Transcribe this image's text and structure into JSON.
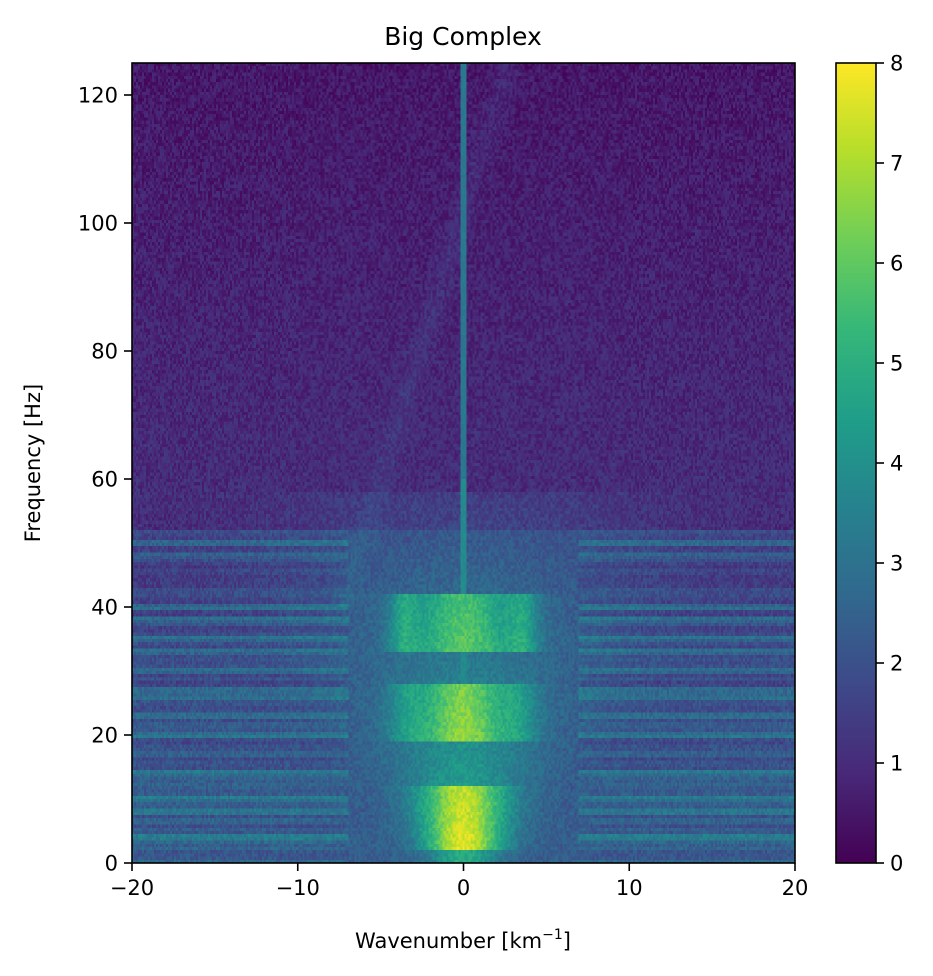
{
  "chart_data": {
    "type": "heatmap",
    "title": "Big Complex",
    "xlabel": "Wavenumber [km",
    "xlabel_sup": "−1",
    "xlabel_end": "]",
    "ylabel": "Frequency [Hz]",
    "xlim": [
      -20,
      20
    ],
    "ylim": [
      0,
      125
    ],
    "x_ticks": [
      -20,
      -10,
      0,
      10,
      20
    ],
    "x_tick_labels": [
      "−20",
      "−10",
      "0",
      "10",
      "20"
    ],
    "y_ticks": [
      0,
      20,
      40,
      60,
      80,
      100,
      120
    ],
    "y_tick_labels": [
      "0",
      "20",
      "40",
      "60",
      "80",
      "100",
      "120"
    ],
    "colorbar": {
      "colormap": "viridis",
      "range": [
        0,
        8
      ],
      "ticks": [
        0,
        1,
        2,
        3,
        4,
        5,
        6,
        7,
        8
      ],
      "tick_labels": [
        "0",
        "1",
        "2",
        "3",
        "4",
        "5",
        "6",
        "7",
        "8"
      ]
    },
    "grid": false,
    "description_of_field": {
      "background_value": 1.0,
      "central_line_at_k0_value": 3.8,
      "cone_bright_bands_hz": [
        [
          2,
          12
        ],
        [
          19,
          28
        ],
        [
          33,
          42
        ]
      ],
      "cone_peak_value": 7.3,
      "horizontal_band_rows_hz": [
        4,
        8,
        10,
        14,
        20,
        23,
        26,
        27,
        30,
        33,
        35,
        38,
        40,
        48,
        50
      ]
    },
    "colors": {
      "viridis_0": "#440154",
      "viridis_1": "#482878",
      "viridis_2": "#3e4989",
      "viridis_3": "#31688e",
      "viridis_4": "#26828e",
      "viridis_5": "#1f9e89",
      "viridis_6": "#35b779",
      "viridis_7": "#6ece58",
      "viridis_8": "#b5de2b",
      "viridis_9": "#fde725"
    }
  }
}
